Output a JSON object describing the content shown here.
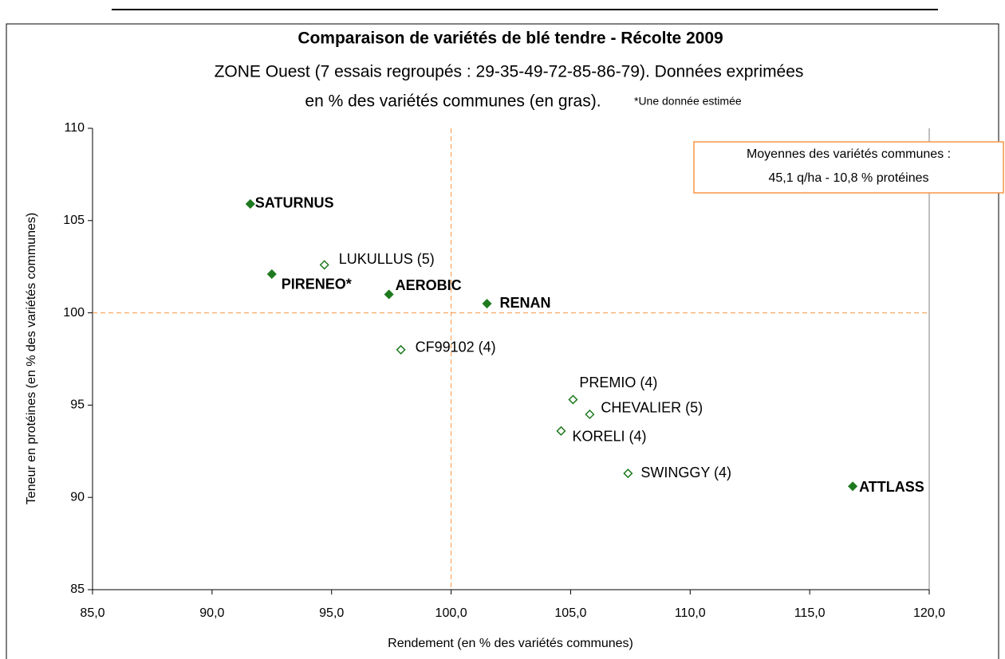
{
  "chart_data": {
    "type": "scatter",
    "title": "Comparaison de variétés de blé tendre - Récolte 2009",
    "subtitle": [
      "ZONE Ouest (7 essais regroupés : 29-35-49-72-85-86-79). Données exprimées",
      "en % des variétés communes (en gras)."
    ],
    "note": "*Une donnée estimée",
    "annotation": [
      "Moyennes des variétés communes :",
      "45,1 q/ha  -  10,8 % protéines"
    ],
    "x_label": "Rendement (en % des variétés communes)",
    "y_label": "Teneur en protéines (en % des variétés communes)",
    "xlim": [
      85,
      120
    ],
    "ylim": [
      85,
      110
    ],
    "xticks": [
      {
        "value": 85,
        "label": "85,0"
      },
      {
        "value": 90,
        "label": "90,0"
      },
      {
        "value": 95,
        "label": "95,0"
      },
      {
        "value": 100,
        "label": "100,0"
      },
      {
        "value": 105,
        "label": "105,0"
      },
      {
        "value": 110,
        "label": "110,0"
      },
      {
        "value": 115,
        "label": "115,0"
      },
      {
        "value": 120,
        "label": "120,0"
      }
    ],
    "yticks": [
      85,
      90,
      95,
      100,
      105,
      110
    ],
    "reference_lines": {
      "x": 100,
      "y": 100,
      "color": "#f79646"
    },
    "series": [
      {
        "color": "#1f7a1f",
        "marker": "filled",
        "bold": true,
        "labels": [
          "SATURNUS",
          "PIRENEO*",
          "AEROBIC",
          "RENAN",
          "ATTLASS"
        ],
        "x": [
          91.6,
          92.5,
          97.4,
          101.5,
          116.8
        ],
        "y": [
          105.9,
          102.1,
          101.0,
          100.5,
          90.6
        ]
      },
      {
        "color": "#1f7a1f",
        "marker": "hollow",
        "bold": false,
        "labels": [
          "LUKULLUS (5)",
          "CF99102 (4)",
          "PREMIO (4)",
          "CHEVALIER (5)",
          "KORELI (4)",
          "SWINGGY (4)"
        ],
        "x": [
          94.7,
          97.9,
          105.1,
          105.8,
          104.6,
          107.4
        ],
        "y": [
          102.6,
          98.0,
          95.3,
          94.5,
          93.6,
          91.3
        ]
      }
    ]
  }
}
